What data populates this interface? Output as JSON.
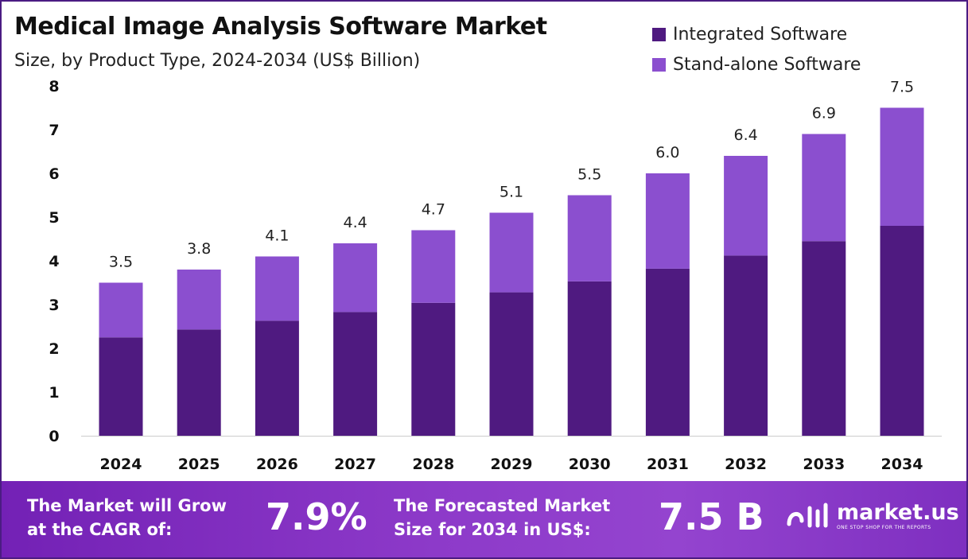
{
  "title": "Medical Image Analysis Software Market",
  "subtitle": "Size, by Product Type, 2024-2034 (US$ Billion)",
  "colors": {
    "integrated": "#4f1a80",
    "standalone": "#8b4fcf",
    "footer": "#8234c4",
    "border": "#4b1c83"
  },
  "chart_data": {
    "type": "bar",
    "stacked": true,
    "categories": [
      "2024",
      "2025",
      "2026",
      "2027",
      "2028",
      "2029",
      "2030",
      "2031",
      "2032",
      "2033",
      "2034"
    ],
    "series": [
      {
        "name": "Integrated Software",
        "values": [
          2.25,
          2.43,
          2.63,
          2.83,
          3.04,
          3.28,
          3.53,
          3.82,
          4.12,
          4.45,
          4.8
        ]
      },
      {
        "name": "Stand-alone Software",
        "values": [
          1.25,
          1.37,
          1.47,
          1.57,
          1.66,
          1.82,
          1.97,
          2.18,
          2.28,
          2.45,
          2.7
        ]
      }
    ],
    "totals": [
      "3.5",
      "3.8",
      "4.1",
      "4.4",
      "4.7",
      "5.1",
      "5.5",
      "6.0",
      "6.4",
      "6.9",
      "7.5"
    ],
    "y_ticks": [
      "0",
      "1",
      "2",
      "3",
      "4",
      "5",
      "6",
      "7",
      "8"
    ],
    "ylim": [
      0,
      8
    ],
    "grid": false,
    "legend_position": "top-right"
  },
  "legend": {
    "items": [
      "Integrated Software",
      "Stand-alone Software"
    ]
  },
  "footer": {
    "cagr_label_line1": "The Market will Grow",
    "cagr_label_line2": "at the CAGR of:",
    "cagr_value": "7.9%",
    "forecast_label_line1": "The Forecasted Market",
    "forecast_label_line2": "Size for 2034 in US$:",
    "forecast_value": "7.5 B",
    "brand_name": "market.us",
    "brand_tagline": "ONE STOP SHOP FOR THE REPORTS"
  }
}
